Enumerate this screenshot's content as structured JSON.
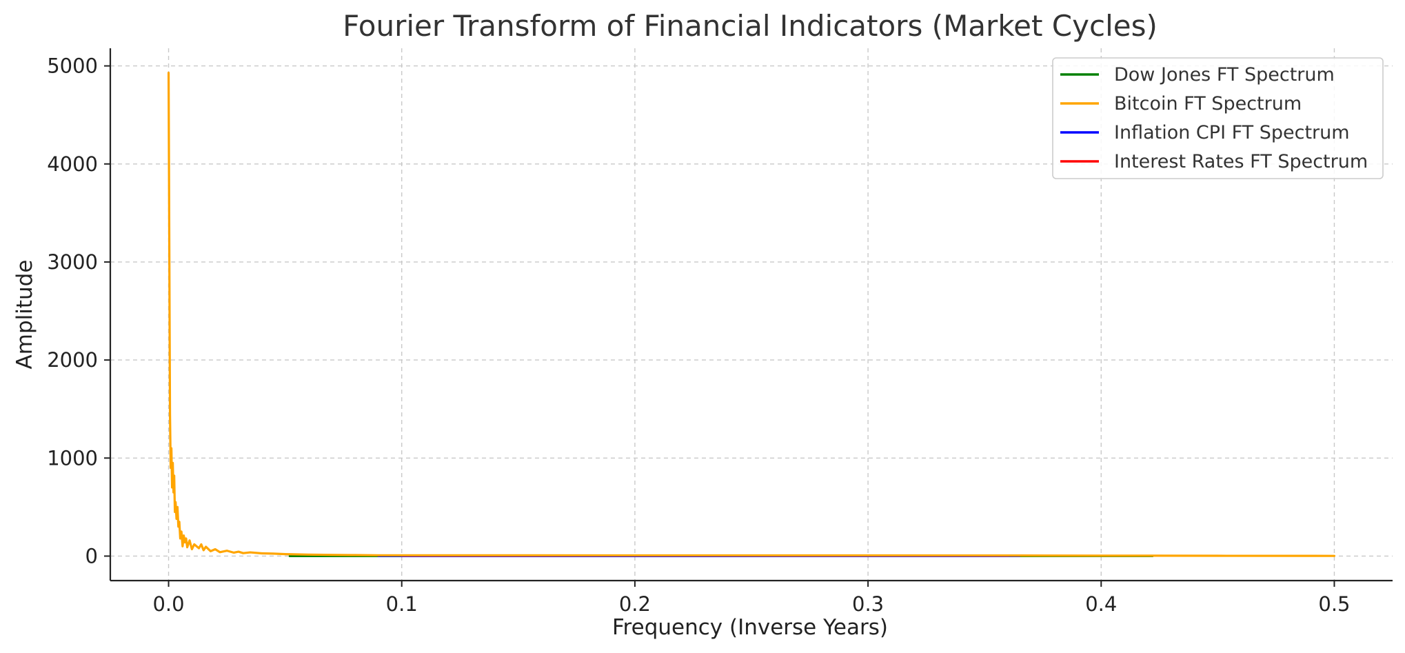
{
  "chart_data": {
    "type": "line",
    "title": "Fourier Transform of Financial Indicators (Market Cycles)",
    "xlabel": "Frequency (Inverse Years)",
    "ylabel": "Amplitude",
    "xlim": [
      -0.025,
      0.525
    ],
    "ylim": [
      -250,
      5180
    ],
    "xticks": [
      0.0,
      0.1,
      0.2,
      0.3,
      0.4,
      0.5
    ],
    "xtick_labels": [
      "0.0",
      "0.1",
      "0.2",
      "0.3",
      "0.4",
      "0.5"
    ],
    "yticks": [
      0,
      1000,
      2000,
      3000,
      4000,
      5000
    ],
    "ytick_labels": [
      "0",
      "1000",
      "2000",
      "3000",
      "4000",
      "5000"
    ],
    "grid": true,
    "legend_position": "top-right",
    "series": [
      {
        "name": "Dow Jones FT Spectrum",
        "color": "#008000",
        "x": [
          0.052,
          0.07,
          0.09,
          0.2,
          0.3,
          0.365,
          0.39,
          0.422
        ],
        "y": [
          0,
          0,
          0,
          0,
          0,
          0,
          0,
          0
        ]
      },
      {
        "name": "Bitcoin FT Spectrum",
        "color": "#FFA500",
        "x": [
          0.0,
          0.0003,
          0.0006,
          0.0009,
          0.0012,
          0.0015,
          0.0018,
          0.0021,
          0.0024,
          0.0027,
          0.003,
          0.0034,
          0.0038,
          0.0042,
          0.0046,
          0.005,
          0.0055,
          0.006,
          0.0065,
          0.007,
          0.0075,
          0.008,
          0.009,
          0.01,
          0.011,
          0.012,
          0.013,
          0.014,
          0.015,
          0.016,
          0.018,
          0.02,
          0.022,
          0.025,
          0.028,
          0.03,
          0.032,
          0.035,
          0.04,
          0.045,
          0.05,
          0.06,
          0.07,
          0.08,
          0.09,
          0.365,
          0.38,
          0.4,
          0.422,
          0.45,
          0.5
        ],
        "y": [
          4930,
          3200,
          1450,
          900,
          1100,
          700,
          950,
          650,
          820,
          450,
          550,
          380,
          500,
          300,
          350,
          180,
          250,
          100,
          210,
          140,
          180,
          90,
          160,
          70,
          120,
          100,
          80,
          120,
          60,
          95,
          50,
          70,
          40,
          55,
          35,
          45,
          30,
          38,
          28,
          25,
          20,
          15,
          12,
          10,
          8,
          6,
          5,
          4,
          4,
          3,
          2
        ]
      },
      {
        "name": "Inflation CPI FT Spectrum",
        "color": "#0000FF",
        "x": [
          0.09,
          0.15,
          0.2,
          0.25,
          0.3,
          0.365
        ],
        "y": [
          2,
          2,
          1,
          1,
          1,
          1
        ]
      },
      {
        "name": "Interest Rates FT Spectrum",
        "color": "#FF0000",
        "x": [
          0.1,
          0.2,
          0.3,
          0.36
        ],
        "y": [
          0,
          0,
          0,
          0
        ]
      }
    ]
  }
}
